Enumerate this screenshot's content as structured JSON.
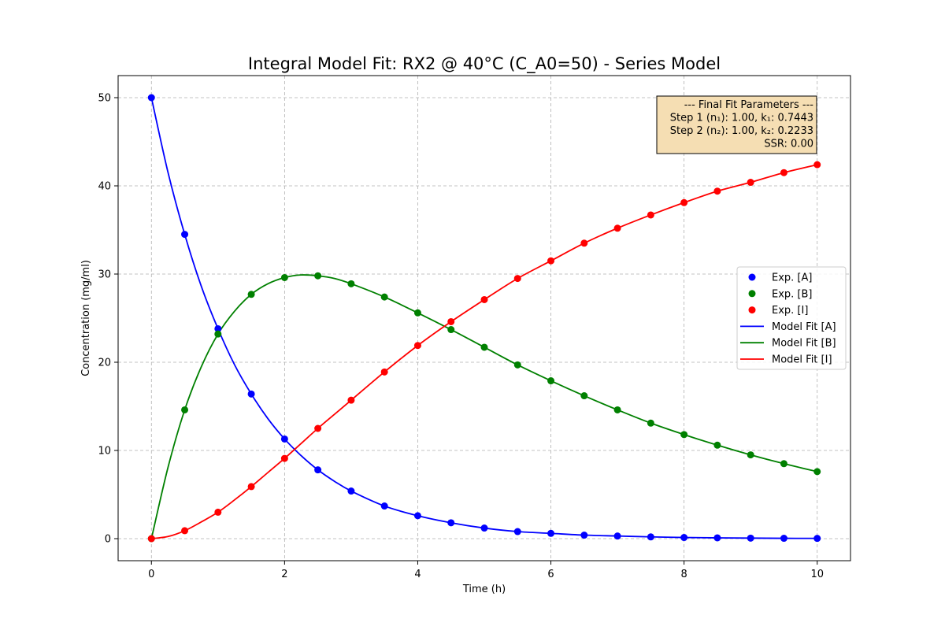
{
  "chart_data": {
    "type": "scatter",
    "title": "Integral Model Fit: RX2 @ 40°C (C_A0=50) - Series Model",
    "xlabel": "Time (h)",
    "ylabel": "Concentration (mg/ml)",
    "xlim": [
      -0.5,
      10.5
    ],
    "ylim": [
      -2.5,
      52.5
    ],
    "xticks": [
      0,
      2,
      4,
      6,
      8,
      10
    ],
    "yticks": [
      0,
      10,
      20,
      30,
      40,
      50
    ],
    "grid": true,
    "legend_position": "center-right",
    "series": [
      {
        "name": "Exp. [A]",
        "kind": "points",
        "color": "#0000ff",
        "x": [
          0,
          0.5,
          1,
          1.5,
          2,
          2.5,
          3,
          3.5,
          4,
          4.5,
          5,
          5.5,
          6,
          6.5,
          7,
          7.5,
          8,
          8.5,
          9,
          9.5,
          10
        ],
        "y": [
          50,
          34.5,
          23.8,
          16.4,
          11.3,
          7.8,
          5.4,
          3.7,
          2.6,
          1.8,
          1.2,
          0.8,
          0.6,
          0.4,
          0.3,
          0.2,
          0.13,
          0.09,
          0.06,
          0.04,
          0.03
        ]
      },
      {
        "name": "Exp. [B]",
        "kind": "points",
        "color": "#008000",
        "x": [
          0,
          0.5,
          1,
          1.5,
          2,
          2.5,
          3,
          3.5,
          4,
          4.5,
          5,
          5.5,
          6,
          6.5,
          7,
          7.5,
          8,
          8.5,
          9,
          9.5,
          10
        ],
        "y": [
          0,
          14.6,
          23.2,
          27.7,
          29.6,
          29.8,
          28.9,
          27.4,
          25.6,
          23.7,
          21.7,
          19.7,
          17.9,
          16.2,
          14.6,
          13.1,
          11.8,
          10.6,
          9.5,
          8.5,
          7.6
        ]
      },
      {
        "name": "Exp. [I]",
        "kind": "points",
        "color": "#ff0000",
        "x": [
          0,
          0.5,
          1,
          1.5,
          2,
          2.5,
          3,
          3.5,
          4,
          4.5,
          5,
          5.5,
          6,
          6.5,
          7,
          7.5,
          8,
          8.5,
          9,
          9.5,
          10
        ],
        "y": [
          0,
          0.9,
          3.0,
          5.9,
          9.1,
          12.5,
          15.7,
          18.9,
          21.9,
          24.6,
          27.1,
          29.5,
          31.5,
          33.5,
          35.2,
          36.7,
          38.1,
          39.4,
          40.4,
          41.5,
          42.4
        ]
      },
      {
        "name": "Model Fit [A]",
        "kind": "line",
        "color": "#0000ff",
        "x": [
          0,
          0.25,
          0.5,
          0.75,
          1,
          1.25,
          1.5,
          1.75,
          2,
          2.25,
          2.5,
          2.75,
          3,
          3.5,
          4,
          4.5,
          5,
          5.5,
          6,
          6.5,
          7,
          7.5,
          8,
          8.5,
          9,
          9.5,
          10
        ],
        "y": [
          50,
          41.5,
          34.5,
          28.6,
          23.8,
          19.7,
          16.4,
          13.6,
          11.3,
          9.4,
          7.8,
          6.5,
          5.4,
          3.7,
          2.6,
          1.8,
          1.2,
          0.8,
          0.6,
          0.4,
          0.3,
          0.2,
          0.13,
          0.09,
          0.06,
          0.04,
          0.03
        ]
      },
      {
        "name": "Model Fit [B]",
        "kind": "line",
        "color": "#008000",
        "x": [
          0,
          0.25,
          0.5,
          0.75,
          1,
          1.25,
          1.5,
          1.75,
          2,
          2.25,
          2.5,
          2.75,
          3,
          3.5,
          4,
          4.5,
          5,
          5.5,
          6,
          6.5,
          7,
          7.5,
          8,
          8.5,
          9,
          9.5,
          10
        ],
        "y": [
          0,
          8.1,
          14.6,
          19.5,
          23.2,
          25.8,
          27.7,
          28.9,
          29.6,
          29.9,
          29.8,
          29.5,
          28.9,
          27.4,
          25.6,
          23.7,
          21.7,
          19.7,
          17.9,
          16.2,
          14.6,
          13.1,
          11.8,
          10.6,
          9.5,
          8.5,
          7.6
        ]
      },
      {
        "name": "Model Fit [I]",
        "kind": "line",
        "color": "#ff0000",
        "x": [
          0,
          0.25,
          0.5,
          0.75,
          1,
          1.25,
          1.5,
          1.75,
          2,
          2.25,
          2.5,
          2.75,
          3,
          3.5,
          4,
          4.5,
          5,
          5.5,
          6,
          6.5,
          7,
          7.5,
          8,
          8.5,
          9,
          9.5,
          10
        ],
        "y": [
          0,
          0.24,
          0.9,
          1.9,
          3.0,
          4.4,
          5.9,
          7.5,
          9.1,
          10.8,
          12.5,
          14.1,
          15.7,
          18.9,
          21.9,
          24.6,
          27.1,
          29.5,
          31.5,
          33.5,
          35.2,
          36.7,
          38.1,
          39.4,
          40.4,
          41.5,
          42.4
        ]
      }
    ],
    "annotation": {
      "lines": [
        "--- Final Fit Parameters ---",
        "Step 1 (n₁): 1.00, k₁: 0.7443",
        "Step 2 (n₂): 1.00, k₂: 0.2233",
        "SSR: 0.00"
      ],
      "background": "#f5deb3",
      "position": "top-right"
    }
  }
}
